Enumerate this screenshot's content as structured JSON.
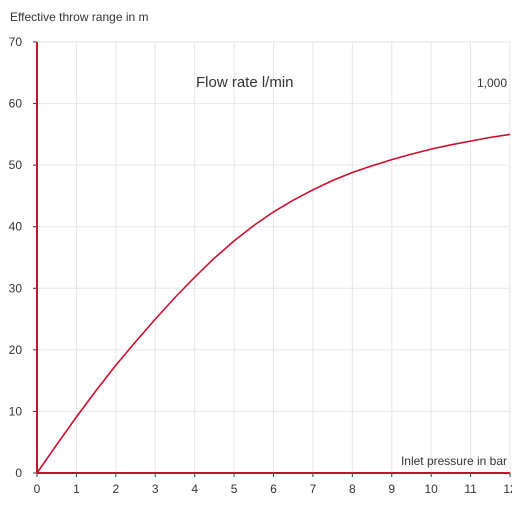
{
  "chart_data": {
    "type": "line",
    "title": "Flow rate l/min",
    "ylabel": "Effective throw range in m",
    "xlabel": "Inlet pressure in bar",
    "xlim": [
      0,
      12
    ],
    "ylim": [
      0,
      70
    ],
    "x_ticks": [
      "0",
      "1",
      "2",
      "3",
      "4",
      "5",
      "6",
      "7",
      "8",
      "9",
      "10",
      "11",
      "12"
    ],
    "y_ticks": [
      "0",
      "10",
      "20",
      "30",
      "40",
      "50",
      "60",
      "70"
    ],
    "grid": true,
    "series": [
      {
        "name": "1,000",
        "color": "#c8102e",
        "x": [
          0,
          0.5,
          1,
          1.5,
          2,
          2.5,
          3,
          3.5,
          4,
          4.5,
          5,
          5.5,
          6,
          6.5,
          7,
          7.5,
          8,
          8.5,
          9,
          9.5,
          10,
          10.5,
          11,
          11.5,
          12
        ],
        "y": [
          0,
          4.6,
          9.1,
          13.4,
          17.5,
          21.3,
          25.0,
          28.5,
          31.8,
          34.9,
          37.7,
          40.2,
          42.4,
          44.3,
          46.0,
          47.5,
          48.8,
          49.9,
          50.9,
          51.8,
          52.6,
          53.3,
          53.9,
          54.5,
          55.0
        ]
      }
    ]
  },
  "colors": {
    "axis": "#c8102e",
    "grid": "#e6e6e6",
    "text": "#333333"
  }
}
